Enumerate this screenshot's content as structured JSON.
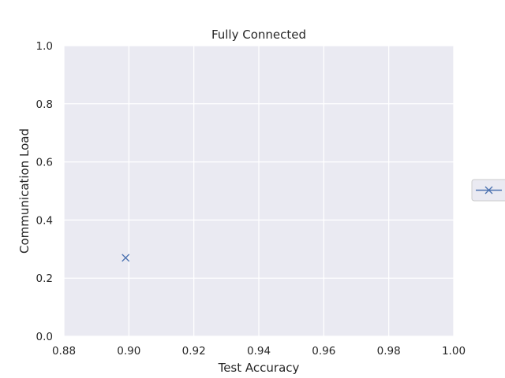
{
  "chart_data": {
    "type": "scatter",
    "title": "Fully Connected",
    "xlabel": "Test Accuracy",
    "ylabel": "Communication Load",
    "xlim": [
      0.88,
      1.0
    ],
    "ylim": [
      0.0,
      1.0
    ],
    "xticks": [
      "0.88",
      "0.90",
      "0.92",
      "0.94",
      "0.96",
      "0.98",
      "1.00"
    ],
    "yticks": [
      "0.0",
      "0.2",
      "0.4",
      "0.6",
      "0.8",
      "1.0"
    ],
    "grid": true,
    "legend_placement": "center-right",
    "colors": {
      "background": "#eaeaf2",
      "grid": "#ffffff",
      "series": "#4c72b0"
    },
    "series": [
      {
        "marker": "x",
        "points": [
          {
            "x": 0.899,
            "y": 0.27
          }
        ]
      }
    ]
  }
}
